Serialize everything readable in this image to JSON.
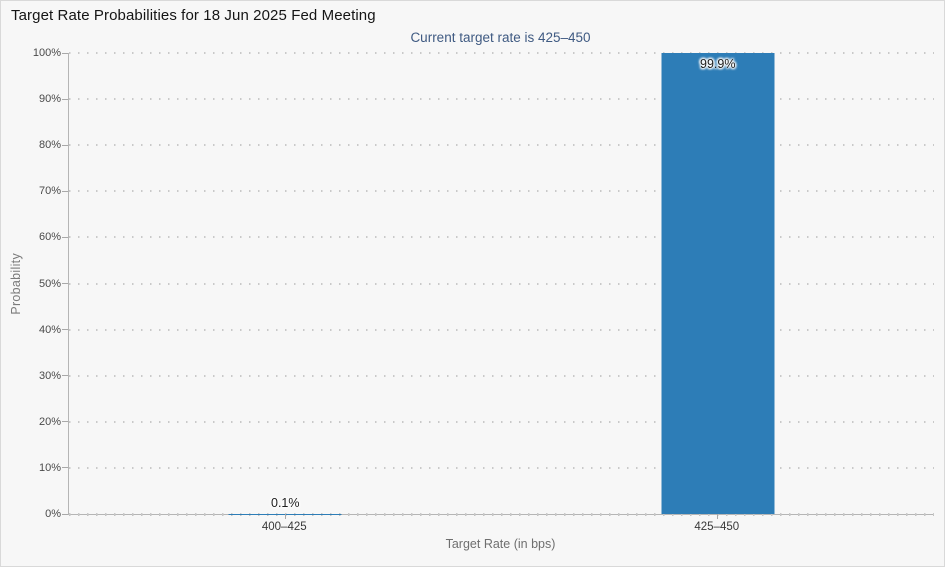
{
  "page": {
    "background": "#f7f7f7",
    "border_color": "#d9d9d9",
    "axis_line_color": "#b5b5b5",
    "gridline_color": "#c9c9c9"
  },
  "chart_data": {
    "type": "bar",
    "title": "Target Rate Probabilities for 18 Jun 2025 Fed Meeting",
    "subtitle": "Current target rate is 425–450",
    "subtitle_color": "#3f5a82",
    "xlabel": "Target Rate (in bps)",
    "ylabel": "Probability",
    "categories": [
      "400–425",
      "425–450"
    ],
    "values": [
      0.1,
      99.9
    ],
    "value_labels": [
      "0.1%",
      "99.9%"
    ],
    "bar_color": "#2d7db7",
    "ylim": [
      0,
      100
    ],
    "ytick_step": 10,
    "ytick_labels": [
      "0%",
      "10%",
      "20%",
      "30%",
      "40%",
      "50%",
      "60%",
      "70%",
      "80%",
      "90%",
      "100%"
    ],
    "grid": "horizontal-dotted",
    "legend": "none"
  }
}
